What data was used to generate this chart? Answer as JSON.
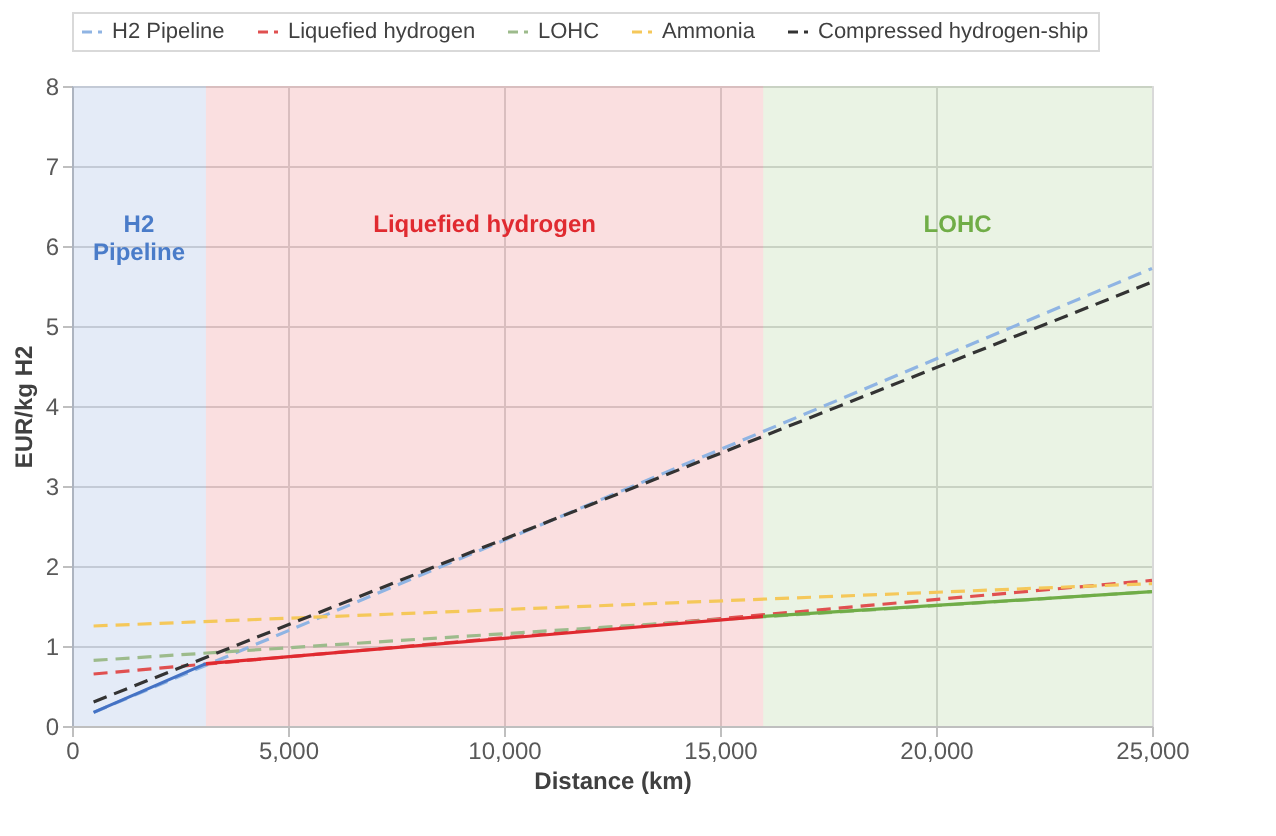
{
  "chart_data": {
    "type": "line",
    "xlabel": "Distance (km)",
    "ylabel": "EUR/kg H2",
    "xlim": [
      0,
      25000
    ],
    "xticks": [
      {
        "value": 0,
        "label": "0"
      },
      {
        "value": 5000,
        "label": "5,000"
      },
      {
        "value": 10000,
        "label": "10,000"
      },
      {
        "value": 15000,
        "label": "15,000"
      },
      {
        "value": 20000,
        "label": "20,000"
      },
      {
        "value": 25000,
        "label": "25,000"
      }
    ],
    "ylim": [
      0,
      8
    ],
    "yticks": [
      0,
      1,
      2,
      3,
      4,
      5,
      6,
      7,
      8
    ],
    "grid": true,
    "legend": "top",
    "marker": "none",
    "bands": [
      {
        "axis": "x",
        "from": 0,
        "to": 3100,
        "label": "H2 Pipeline",
        "color": "#4a7cc9"
      },
      {
        "axis": "x",
        "from": 3100,
        "to": 16000,
        "label": "Liquefied hydrogen",
        "color": "#e02a30"
      },
      {
        "axis": "x",
        "from": 16000,
        "to": 25000,
        "label": "LOHC",
        "color": "#70ad47"
      }
    ],
    "series": [
      {
        "name": "H2 Pipeline",
        "color": "#8fb4e3",
        "line_style": "dashed",
        "x": [
          500,
          25000
        ],
        "values": [
          0.17,
          5.72
        ]
      },
      {
        "name": "Liquefied hydrogen",
        "color": "#e05050",
        "line_style": "dashed",
        "x": [
          500,
          25000
        ],
        "values": [
          0.65,
          1.82
        ]
      },
      {
        "name": "LOHC",
        "color": "#9dbb8c",
        "line_style": "dashed",
        "x": [
          500,
          25000
        ],
        "values": [
          0.82,
          1.68
        ]
      },
      {
        "name": "Ammonia",
        "color": "#f5c85a",
        "line_style": "dashed",
        "x": [
          500,
          25000
        ],
        "values": [
          1.25,
          1.78
        ]
      },
      {
        "name": "Compressed hydrogen-ship",
        "color": "#333333",
        "line_style": "dashed",
        "x": [
          500,
          25000
        ],
        "values": [
          0.3,
          5.55
        ]
      },
      {
        "color": "#4472c4",
        "line_style": "solid",
        "x": [
          500,
          3100
        ],
        "values": [
          0.17,
          0.78
        ]
      },
      {
        "color": "#e02a30",
        "line_style": "solid",
        "x": [
          3100,
          16000
        ],
        "values": [
          0.78,
          1.37
        ]
      },
      {
        "color": "#70ad47",
        "line_style": "solid",
        "x": [
          16000,
          25000
        ],
        "values": [
          1.37,
          1.68
        ]
      }
    ]
  }
}
